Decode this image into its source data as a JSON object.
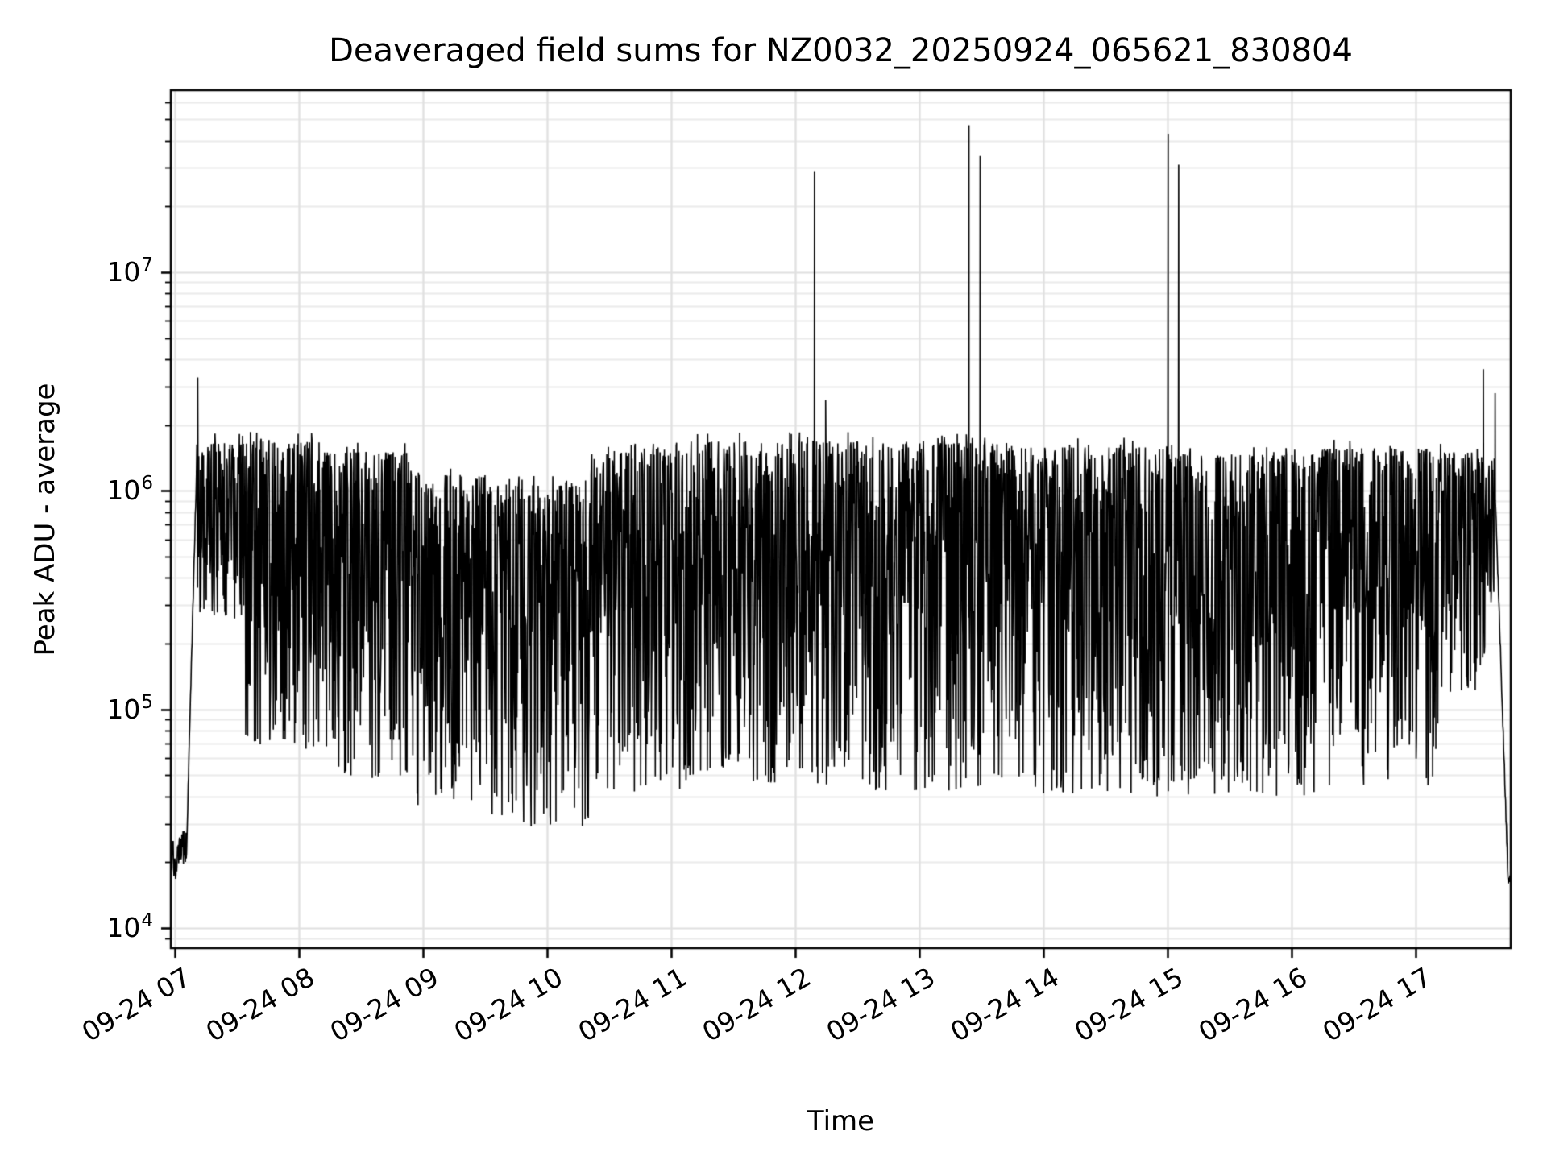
{
  "chart_data": {
    "type": "line",
    "title": "Deaveraged field sums for NZ0032_20250924_065621_830804",
    "xlabel": "Time",
    "ylabel": "Peak ADU - average",
    "yscale": "log",
    "xscale": "time-hours",
    "background": "#ffffff",
    "line_color": "#000000",
    "grid": {
      "major_color": "#e0e0e0",
      "minor_color": "#ebebeb",
      "show_minor": true
    },
    "xlim_hours": [
      6.968,
      17.766
    ],
    "ylim": [
      8100,
      68000000
    ],
    "x_ticks": [
      {
        "hour": 7,
        "label": "09-24 07"
      },
      {
        "hour": 8,
        "label": "09-24 08"
      },
      {
        "hour": 9,
        "label": "09-24 09"
      },
      {
        "hour": 10,
        "label": "09-24 10"
      },
      {
        "hour": 11,
        "label": "09-24 11"
      },
      {
        "hour": 12,
        "label": "09-24 12"
      },
      {
        "hour": 13,
        "label": "09-24 13"
      },
      {
        "hour": 14,
        "label": "09-24 14"
      },
      {
        "hour": 15,
        "label": "09-24 15"
      },
      {
        "hour": 16,
        "label": "09-24 16"
      },
      {
        "hour": 17,
        "label": "09-24 17"
      }
    ],
    "y_ticks": [
      {
        "value": 10000,
        "base": "10",
        "exp": "4"
      },
      {
        "value": 100000,
        "base": "10",
        "exp": "5"
      },
      {
        "value": 1000000,
        "base": "10",
        "exp": "6"
      },
      {
        "value": 10000000,
        "base": "10",
        "exp": "7"
      }
    ],
    "noise_seed": 20250924,
    "points_count": 3400,
    "envelope_segments": [
      {
        "mode": "floor",
        "t0": 6.968,
        "t1": 7.0,
        "lo": 17000,
        "hi": 26000
      },
      {
        "mode": "floor",
        "t0": 7.0,
        "t1": 7.02,
        "lo": 12500,
        "hi": 21000
      },
      {
        "mode": "floor",
        "t0": 7.02,
        "t1": 7.095,
        "lo": 18000,
        "hi": 28000
      },
      {
        "mode": "ramp",
        "t0": 7.095,
        "t1": 7.175,
        "from": 23000,
        "to": 1250000
      },
      {
        "mode": "band",
        "t0": 7.175,
        "t1": 7.55,
        "lo": 260000,
        "hi": 1650000
      },
      {
        "mode": "band",
        "t0": 7.55,
        "t1": 8.2,
        "lo": 65000,
        "hi": 1680000
      },
      {
        "mode": "band",
        "t0": 8.2,
        "t1": 8.9,
        "lo": 48000,
        "hi": 1500000
      },
      {
        "mode": "band",
        "t0": 8.9,
        "t1": 9.5,
        "lo": 36000,
        "hi": 1180000
      },
      {
        "mode": "band",
        "t0": 9.5,
        "t1": 10.35,
        "lo": 29000,
        "hi": 1060000
      },
      {
        "mode": "band",
        "t0": 10.35,
        "t1": 11.1,
        "lo": 42000,
        "hi": 1500000
      },
      {
        "mode": "band",
        "t0": 11.1,
        "t1": 12.6,
        "lo": 45000,
        "hi": 1680000
      },
      {
        "mode": "band",
        "t0": 12.6,
        "t1": 13.7,
        "lo": 42000,
        "hi": 1650000
      },
      {
        "mode": "band",
        "t0": 13.7,
        "t1": 15.0,
        "lo": 40000,
        "hi": 1580000
      },
      {
        "mode": "band",
        "t0": 15.0,
        "t1": 16.2,
        "lo": 40000,
        "hi": 1470000
      },
      {
        "mode": "band",
        "t0": 16.2,
        "t1": 17.18,
        "lo": 45000,
        "hi": 1560000
      },
      {
        "mode": "band",
        "t0": 17.18,
        "t1": 17.56,
        "lo": 120000,
        "hi": 1500000
      },
      {
        "mode": "band",
        "t0": 17.56,
        "t1": 17.63,
        "lo": 300000,
        "hi": 1300000
      },
      {
        "mode": "ramp",
        "t0": 17.63,
        "t1": 17.745,
        "from": 1500000,
        "to": 16500
      }
    ],
    "spikes": [
      {
        "t": 7.185,
        "value": 3300000
      },
      {
        "t": 12.155,
        "value": 29000000
      },
      {
        "t": 12.245,
        "value": 2600000
      },
      {
        "t": 13.4,
        "value": 47000000
      },
      {
        "t": 13.49,
        "value": 34000000
      },
      {
        "t": 15.005,
        "value": 43000000
      },
      {
        "t": 15.09,
        "value": 31000000
      },
      {
        "t": 17.545,
        "value": 3600000
      },
      {
        "t": 17.64,
        "value": 2800000
      }
    ]
  }
}
